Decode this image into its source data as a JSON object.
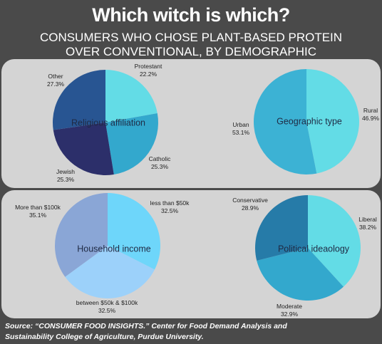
{
  "title": "Which witch is which?",
  "subtitle_line1": "CONSUMERS WHO CHOSE PLANT-BASED PROTEIN",
  "subtitle_line2": "OVER CONVENTIONAL, BY DEMOGRAPHIC",
  "source_line1": "Source: “CONSUMER FOOD INSIGHTS.” Center for Food Demand Analysis and",
  "source_line2": "Sustainability College of Agriculture, Purdue University.",
  "chart_data": [
    {
      "type": "pie",
      "title": "Religious affiliation",
      "slices": [
        {
          "label": "Protestant",
          "value": 22.2,
          "value_label": "22.2%",
          "color": "#63dce6"
        },
        {
          "label": "Catholic",
          "value": 25.3,
          "value_label": "25.3%",
          "color": "#33a8cd"
        },
        {
          "label": "Jewish",
          "value": 25.3,
          "value_label": "25.3%",
          "color": "#2c2f6a"
        },
        {
          "label": "Other",
          "value": 27.3,
          "value_label": "27.3%",
          "color": "#285592"
        }
      ]
    },
    {
      "type": "pie",
      "title": "Geographic type",
      "slices": [
        {
          "label": "Rural",
          "value": 46.9,
          "value_label": "46.9%",
          "color": "#63dce6"
        },
        {
          "label": "Urban",
          "value": 53.1,
          "value_label": "53.1%",
          "color": "#3cb2d4"
        }
      ]
    },
    {
      "type": "pie",
      "title": "Household income",
      "slices": [
        {
          "label": "less than $50k",
          "value": 32.5,
          "value_label": "32.5%",
          "color": "#6ed6fa"
        },
        {
          "label": "between $50k & $100k",
          "value": 32.5,
          "value_label": "32.5%",
          "color": "#9cd1fa"
        },
        {
          "label": "More than $100k",
          "value": 35.1,
          "value_label": "35.1%",
          "color": "#8aa6d6"
        }
      ]
    },
    {
      "type": "pie",
      "title": "Political ideaology",
      "slices": [
        {
          "label": "Liberal",
          "value": 38.2,
          "value_label": "38.2%",
          "color": "#63dce6"
        },
        {
          "label": "Moderate",
          "value": 32.9,
          "value_label": "32.9%",
          "color": "#33a8cd"
        },
        {
          "label": "Conservative",
          "value": 28.9,
          "value_label": "28.9%",
          "color": "#267ba8"
        }
      ]
    }
  ]
}
